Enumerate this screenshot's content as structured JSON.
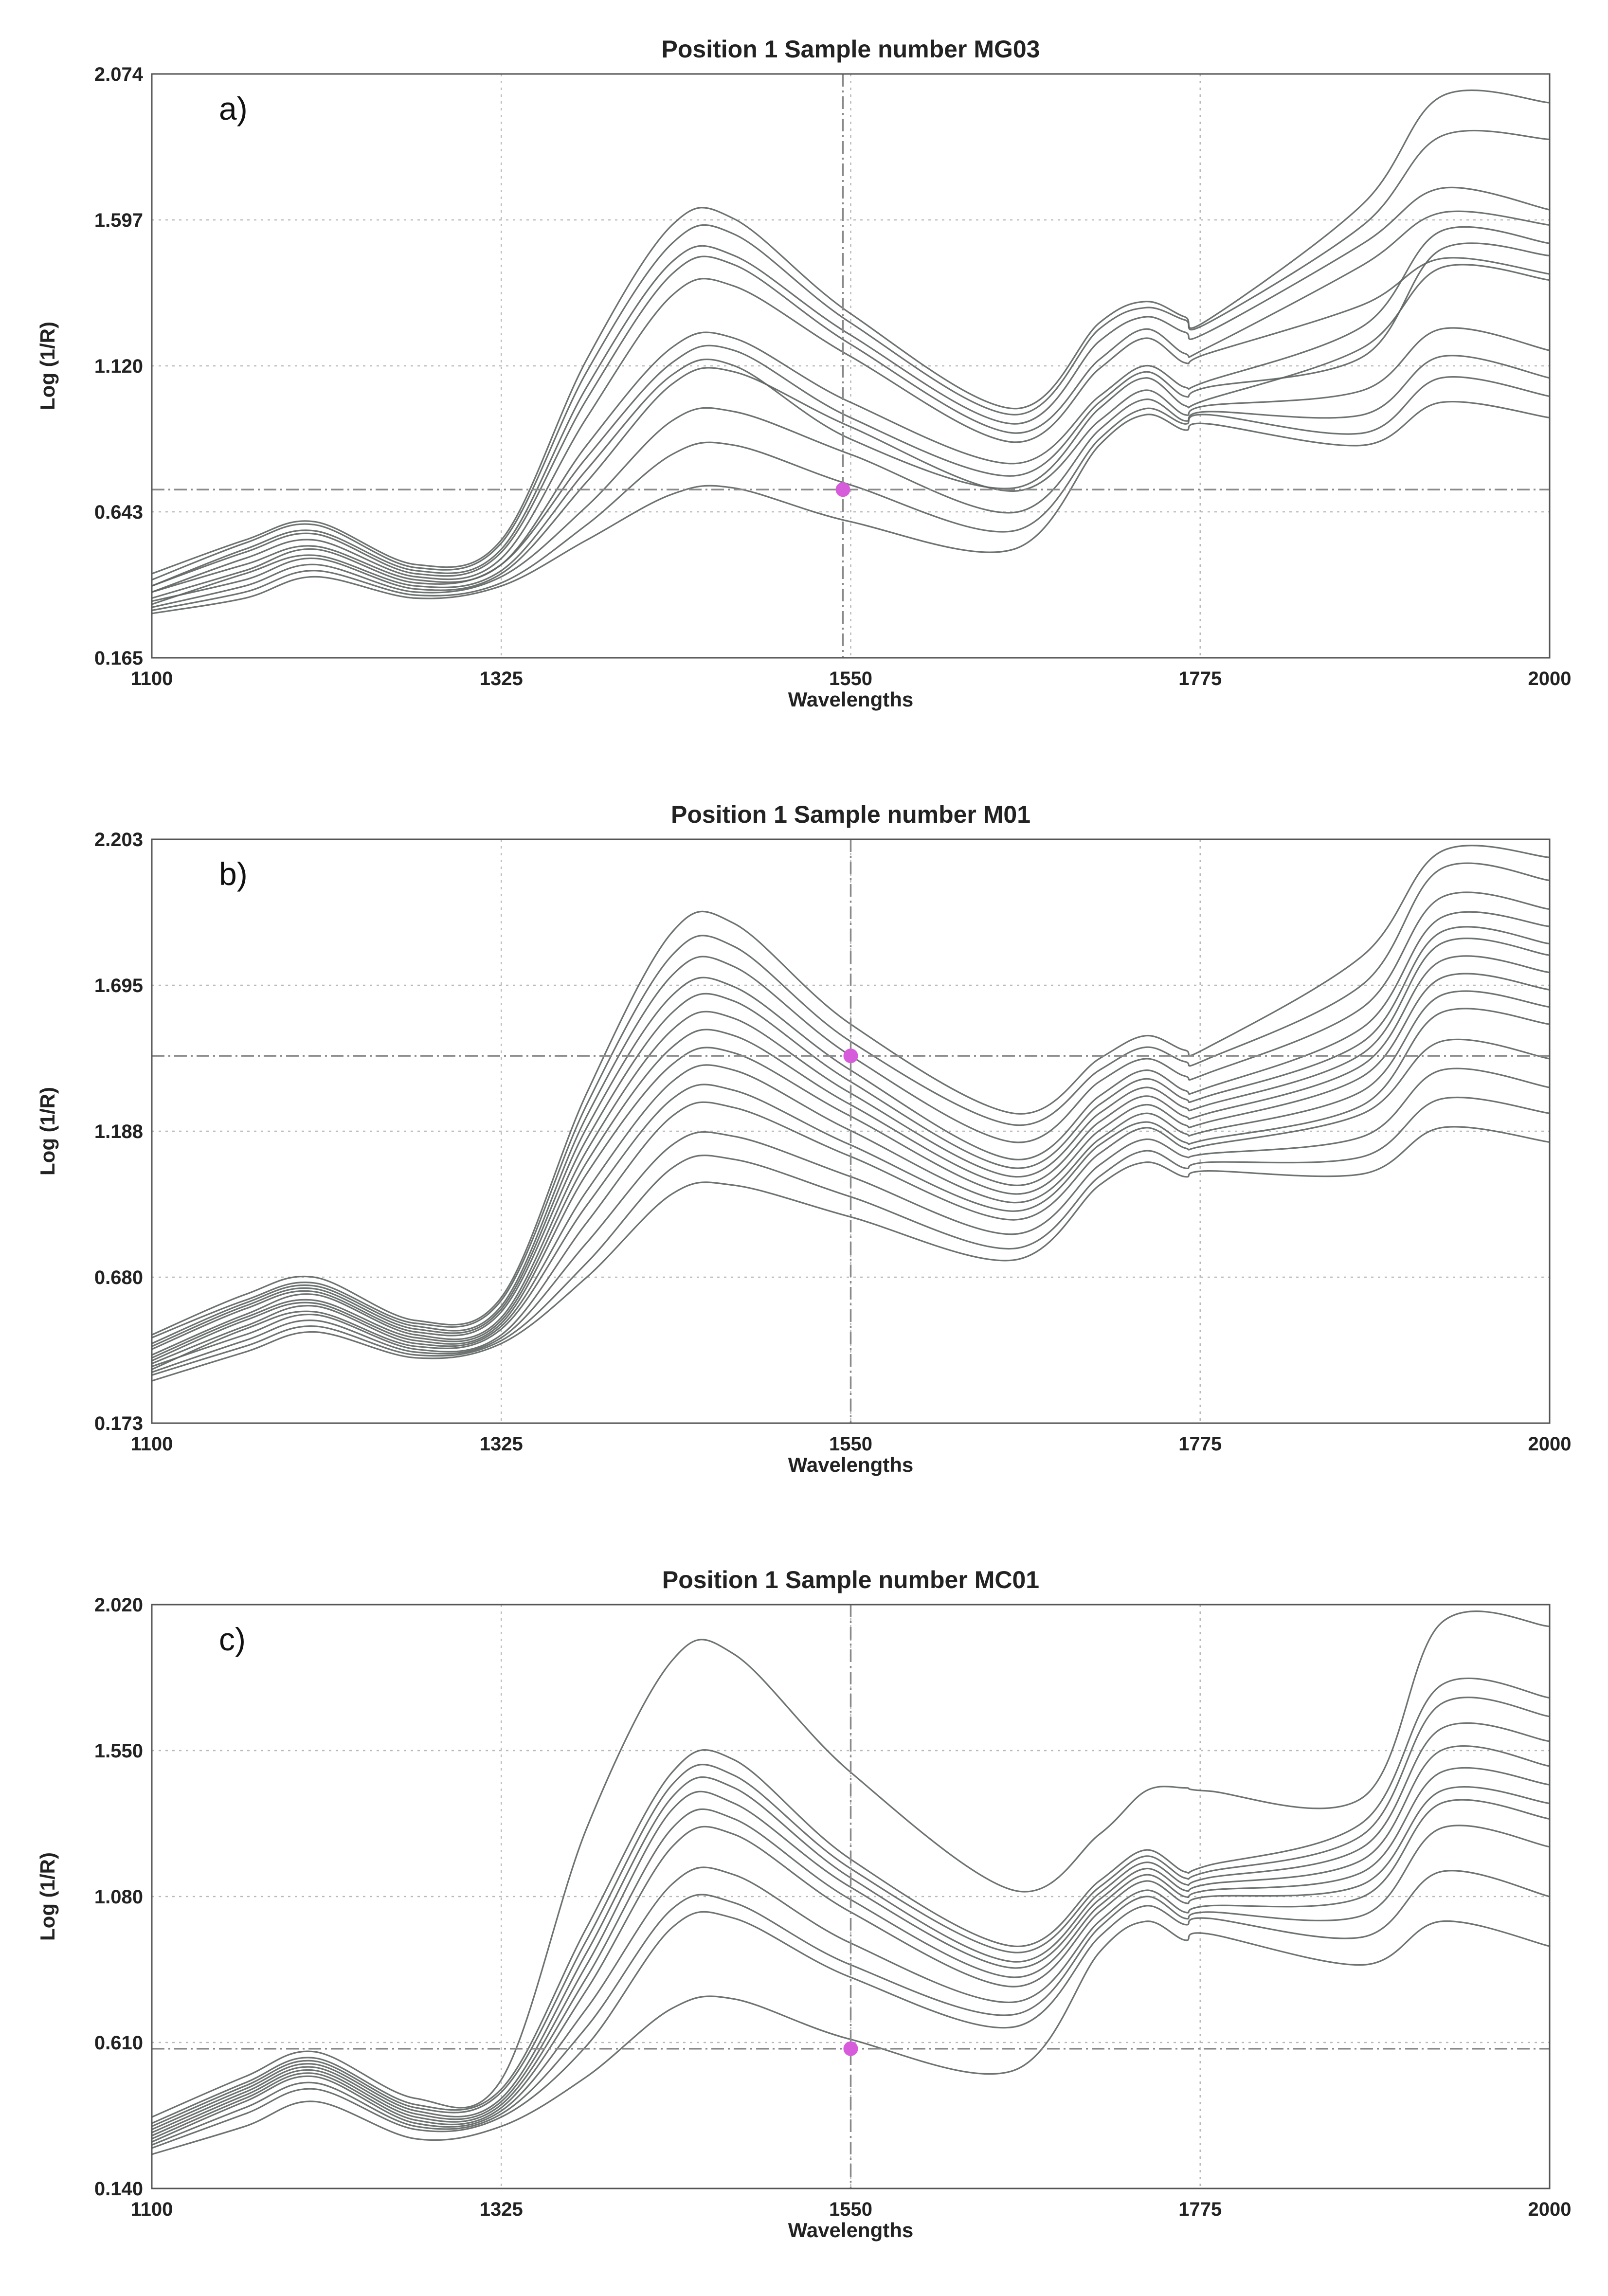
{
  "figure": {
    "panel_count": 3
  },
  "chart_data": [
    {
      "type": "line",
      "panel_label": "a)",
      "title": "Position 1 Sample number MG03",
      "xlabel": "Wavelengths",
      "ylabel": "Log (1/R)",
      "xlim": [
        1100,
        2000
      ],
      "ylim": [
        0.165,
        2.074
      ],
      "x_ticks": [
        "1100",
        "1325",
        "1550",
        "1775",
        "2000"
      ],
      "y_ticks": [
        "0.165",
        "0.643",
        "1.120",
        "1.597",
        "2.074"
      ],
      "grid": true,
      "cursor": {
        "x": 1545,
        "y": 0.715,
        "marker_color": "#d65cdb"
      },
      "spectrum_color": "#5d6462",
      "x": [
        1100,
        1160,
        1205,
        1270,
        1325,
        1380,
        1435,
        1475,
        1550,
        1655,
        1710,
        1740,
        1765,
        1780,
        1880,
        1930,
        2000
      ],
      "series": [
        {
          "name": "spectrum 1",
          "values": [
            0.31,
            0.36,
            0.43,
            0.36,
            0.4,
            0.55,
            0.7,
            0.72,
            0.61,
            0.52,
            0.86,
            0.96,
            0.91,
            0.93,
            0.86,
            1.0,
            0.95
          ]
        },
        {
          "name": "spectrum 2",
          "values": [
            0.32,
            0.38,
            0.45,
            0.37,
            0.41,
            0.6,
            0.83,
            0.86,
            0.73,
            0.58,
            0.88,
            0.98,
            0.93,
            0.96,
            0.9,
            1.08,
            1.02
          ]
        },
        {
          "name": "spectrum 3",
          "values": [
            0.33,
            0.4,
            0.47,
            0.38,
            0.43,
            0.66,
            0.94,
            0.97,
            0.83,
            0.64,
            0.91,
            1.01,
            0.94,
            0.97,
            0.96,
            1.15,
            1.08
          ]
        },
        {
          "name": "spectrum 4",
          "values": [
            0.35,
            0.42,
            0.49,
            0.39,
            0.44,
            0.74,
            1.06,
            1.1,
            0.92,
            0.71,
            0.94,
            1.04,
            0.96,
            0.99,
            1.04,
            1.24,
            1.17
          ]
        },
        {
          "name": "spectrum 5",
          "values": [
            0.34,
            0.44,
            0.5,
            0.4,
            0.45,
            0.78,
            1.09,
            1.12,
            0.88,
            0.72,
            0.98,
            1.08,
            0.99,
            1.01,
            1.18,
            1.44,
            1.4
          ]
        },
        {
          "name": "spectrum 6",
          "values": [
            0.36,
            0.45,
            0.52,
            0.41,
            0.47,
            0.82,
            1.13,
            1.17,
            0.95,
            0.76,
            1.0,
            1.1,
            1.02,
            1.05,
            1.15,
            1.5,
            1.48
          ]
        },
        {
          "name": "spectrum 7",
          "values": [
            0.38,
            0.47,
            0.53,
            0.42,
            0.47,
            0.86,
            1.18,
            1.21,
            1.0,
            0.8,
            1.02,
            1.12,
            1.05,
            1.07,
            1.25,
            1.56,
            1.52
          ]
        },
        {
          "name": "spectrum 8",
          "values": [
            0.38,
            0.49,
            0.55,
            0.43,
            0.49,
            0.95,
            1.35,
            1.38,
            1.15,
            0.87,
            1.11,
            1.21,
            1.13,
            1.16,
            1.32,
            1.47,
            1.42
          ]
        },
        {
          "name": "spectrum 9",
          "values": [
            0.4,
            0.51,
            0.57,
            0.44,
            0.51,
            1.01,
            1.42,
            1.45,
            1.19,
            0.9,
            1.14,
            1.24,
            1.16,
            1.18,
            1.45,
            1.62,
            1.58
          ]
        },
        {
          "name": "spectrum 10",
          "values": [
            0.4,
            0.52,
            0.58,
            0.45,
            0.52,
            1.05,
            1.46,
            1.48,
            1.22,
            0.93,
            1.2,
            1.28,
            1.23,
            1.23,
            1.52,
            1.7,
            1.63
          ]
        },
        {
          "name": "spectrum 11",
          "values": [
            0.42,
            0.54,
            0.6,
            0.46,
            0.54,
            1.1,
            1.52,
            1.55,
            1.26,
            0.96,
            1.24,
            1.31,
            1.27,
            1.26,
            1.58,
            1.87,
            1.86
          ]
        },
        {
          "name": "spectrum 12",
          "values": [
            0.44,
            0.55,
            0.61,
            0.47,
            0.55,
            1.14,
            1.58,
            1.6,
            1.29,
            0.98,
            1.26,
            1.33,
            1.28,
            1.27,
            1.65,
            2.0,
            1.98
          ]
        }
      ]
    },
    {
      "type": "line",
      "panel_label": "b)",
      "title": "Position 1 Sample number M01",
      "xlabel": "Wavelengths",
      "ylabel": "Log (1/R)",
      "xlim": [
        1100,
        2000
      ],
      "ylim": [
        0.173,
        2.203
      ],
      "x_ticks": [
        "1100",
        "1325",
        "1550",
        "1775",
        "2000"
      ],
      "y_ticks": [
        "0.173",
        "0.680",
        "1.188",
        "1.695",
        "2.203"
      ],
      "grid": true,
      "cursor": {
        "x": 1550,
        "y": 1.45,
        "marker_color": "#d65cdb"
      },
      "spectrum_color": "#5d6462",
      "x": [
        1100,
        1160,
        1205,
        1270,
        1325,
        1380,
        1435,
        1475,
        1550,
        1655,
        1710,
        1740,
        1765,
        1780,
        1880,
        1930,
        2000
      ],
      "series": [
        {
          "name": "spectrum 1",
          "values": [
            0.32,
            0.42,
            0.49,
            0.4,
            0.45,
            0.68,
            0.97,
            1.0,
            0.89,
            0.74,
            1.0,
            1.08,
            1.03,
            1.05,
            1.04,
            1.2,
            1.15
          ]
        },
        {
          "name": "spectrum 2",
          "values": [
            0.34,
            0.44,
            0.51,
            0.41,
            0.46,
            0.73,
            1.06,
            1.09,
            0.96,
            0.78,
            1.03,
            1.12,
            1.06,
            1.08,
            1.1,
            1.3,
            1.25
          ]
        },
        {
          "name": "spectrum 3",
          "values": [
            0.35,
            0.46,
            0.53,
            0.42,
            0.47,
            0.8,
            1.14,
            1.17,
            1.03,
            0.83,
            1.07,
            1.16,
            1.1,
            1.11,
            1.17,
            1.4,
            1.34
          ]
        },
        {
          "name": "spectrum 4",
          "values": [
            0.37,
            0.48,
            0.55,
            0.43,
            0.48,
            0.87,
            1.24,
            1.27,
            1.1,
            0.88,
            1.11,
            1.2,
            1.13,
            1.14,
            1.25,
            1.5,
            1.44
          ]
        },
        {
          "name": "spectrum 5",
          "values": [
            0.36,
            0.5,
            0.56,
            0.44,
            0.5,
            0.93,
            1.3,
            1.33,
            1.14,
            0.91,
            1.14,
            1.22,
            1.15,
            1.16,
            1.28,
            1.6,
            1.56
          ]
        },
        {
          "name": "spectrum 6",
          "values": [
            0.38,
            0.51,
            0.58,
            0.45,
            0.51,
            0.98,
            1.36,
            1.4,
            1.19,
            0.94,
            1.16,
            1.25,
            1.18,
            1.19,
            1.33,
            1.66,
            1.62
          ]
        },
        {
          "name": "spectrum 7",
          "values": [
            0.39,
            0.53,
            0.59,
            0.46,
            0.52,
            1.04,
            1.42,
            1.46,
            1.24,
            0.97,
            1.19,
            1.28,
            1.21,
            1.22,
            1.38,
            1.72,
            1.68
          ]
        },
        {
          "name": "spectrum 8",
          "values": [
            0.4,
            0.54,
            0.6,
            0.47,
            0.53,
            1.08,
            1.48,
            1.52,
            1.28,
            1.0,
            1.22,
            1.31,
            1.24,
            1.25,
            1.42,
            1.78,
            1.74
          ]
        },
        {
          "name": "spectrum 9",
          "values": [
            0.41,
            0.55,
            0.62,
            0.48,
            0.54,
            1.12,
            1.54,
            1.58,
            1.32,
            1.03,
            1.25,
            1.34,
            1.27,
            1.28,
            1.46,
            1.84,
            1.8
          ]
        },
        {
          "name": "spectrum 10",
          "values": [
            0.43,
            0.57,
            0.63,
            0.49,
            0.56,
            1.16,
            1.6,
            1.64,
            1.36,
            1.06,
            1.28,
            1.37,
            1.3,
            1.31,
            1.5,
            1.88,
            1.84
          ]
        },
        {
          "name": "spectrum 11",
          "values": [
            0.44,
            0.58,
            0.64,
            0.5,
            0.57,
            1.2,
            1.66,
            1.69,
            1.4,
            1.09,
            1.31,
            1.4,
            1.33,
            1.34,
            1.55,
            1.93,
            1.9
          ]
        },
        {
          "name": "spectrum 12",
          "values": [
            0.45,
            0.59,
            0.65,
            0.51,
            0.58,
            1.24,
            1.73,
            1.76,
            1.45,
            1.15,
            1.36,
            1.44,
            1.38,
            1.39,
            1.62,
            2.0,
            1.96
          ]
        },
        {
          "name": "spectrum 13",
          "values": [
            0.47,
            0.6,
            0.66,
            0.52,
            0.6,
            1.28,
            1.8,
            1.83,
            1.5,
            1.21,
            1.4,
            1.48,
            1.43,
            1.44,
            1.7,
            2.1,
            2.06
          ]
        },
        {
          "name": "spectrum 14",
          "values": [
            0.48,
            0.62,
            0.68,
            0.53,
            0.61,
            1.32,
            1.88,
            1.91,
            1.56,
            1.25,
            1.44,
            1.52,
            1.47,
            1.48,
            1.8,
            2.16,
            2.14
          ]
        }
      ]
    },
    {
      "type": "line",
      "panel_label": "c)",
      "title": "Position 1 Sample number MC01",
      "xlabel": "Wavelengths",
      "ylabel": "Log (1/R)",
      "xlim": [
        1100,
        2000
      ],
      "ylim": [
        0.14,
        2.02
      ],
      "x_ticks": [
        "1100",
        "1325",
        "1550",
        "1775",
        "2000"
      ],
      "y_ticks": [
        "0.140",
        "0.610",
        "1.080",
        "1.550",
        "2.020"
      ],
      "grid": true,
      "cursor": {
        "x": 1550,
        "y": 0.59,
        "marker_color": "#d65cdb"
      },
      "spectrum_color": "#5d6462",
      "x": [
        1100,
        1160,
        1205,
        1270,
        1325,
        1380,
        1435,
        1475,
        1550,
        1655,
        1710,
        1740,
        1765,
        1780,
        1880,
        1930,
        2000
      ],
      "series": [
        {
          "name": "spectrum 1",
          "values": [
            0.25,
            0.34,
            0.42,
            0.3,
            0.34,
            0.5,
            0.72,
            0.75,
            0.62,
            0.52,
            0.9,
            1.0,
            0.94,
            0.96,
            0.86,
            1.0,
            0.92
          ]
        },
        {
          "name": "spectrum 2",
          "values": [
            0.27,
            0.38,
            0.46,
            0.33,
            0.37,
            0.6,
            0.98,
            1.01,
            0.82,
            0.66,
            0.95,
            1.05,
            0.99,
            1.01,
            0.95,
            1.16,
            1.08
          ]
        },
        {
          "name": "spectrum 3",
          "values": [
            0.28,
            0.4,
            0.48,
            0.34,
            0.38,
            0.66,
            1.04,
            1.06,
            0.86,
            0.7,
            0.98,
            1.08,
            1.01,
            1.03,
            1.02,
            1.3,
            1.24
          ]
        },
        {
          "name": "spectrum 4",
          "values": [
            0.29,
            0.42,
            0.5,
            0.35,
            0.39,
            0.72,
            1.12,
            1.15,
            0.93,
            0.74,
            1.0,
            1.1,
            1.03,
            1.05,
            1.08,
            1.38,
            1.33
          ]
        },
        {
          "name": "spectrum 5",
          "values": [
            0.3,
            0.43,
            0.51,
            0.36,
            0.4,
            0.78,
            1.24,
            1.28,
            1.03,
            0.79,
            1.03,
            1.13,
            1.06,
            1.08,
            1.12,
            1.42,
            1.38
          ]
        },
        {
          "name": "spectrum 6",
          "values": [
            0.31,
            0.44,
            0.52,
            0.37,
            0.41,
            0.82,
            1.3,
            1.33,
            1.07,
            0.82,
            1.05,
            1.15,
            1.08,
            1.1,
            1.16,
            1.48,
            1.44
          ]
        },
        {
          "name": "spectrum 7",
          "values": [
            0.32,
            0.45,
            0.53,
            0.38,
            0.42,
            0.86,
            1.36,
            1.38,
            1.11,
            0.85,
            1.07,
            1.17,
            1.1,
            1.12,
            1.2,
            1.55,
            1.5
          ]
        },
        {
          "name": "spectrum 8",
          "values": [
            0.33,
            0.46,
            0.54,
            0.39,
            0.43,
            0.9,
            1.4,
            1.43,
            1.14,
            0.87,
            1.09,
            1.19,
            1.12,
            1.14,
            1.24,
            1.62,
            1.58
          ]
        },
        {
          "name": "spectrum 9",
          "values": [
            0.34,
            0.47,
            0.55,
            0.4,
            0.45,
            0.94,
            1.44,
            1.47,
            1.17,
            0.9,
            1.11,
            1.21,
            1.14,
            1.16,
            1.28,
            1.7,
            1.66
          ]
        },
        {
          "name": "spectrum 10",
          "values": [
            0.35,
            0.48,
            0.56,
            0.41,
            0.46,
            0.98,
            1.48,
            1.52,
            1.2,
            0.92,
            1.13,
            1.23,
            1.16,
            1.18,
            1.32,
            1.76,
            1.72
          ]
        },
        {
          "name": "spectrum 11",
          "values": [
            0.37,
            0.5,
            0.58,
            0.43,
            0.49,
            1.3,
            1.84,
            1.86,
            1.48,
            1.1,
            1.28,
            1.42,
            1.43,
            1.42,
            1.4,
            1.96,
            1.95
          ]
        }
      ]
    }
  ]
}
